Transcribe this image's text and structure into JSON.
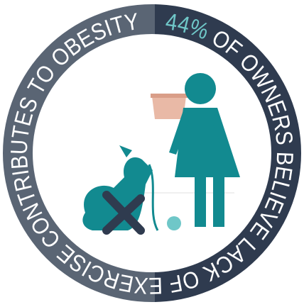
{
  "stat": "44%",
  "text": "OF OWNERS BELIEVE LACK OF EXERCISE CONTRIBUTES TO OBESITY"
}
